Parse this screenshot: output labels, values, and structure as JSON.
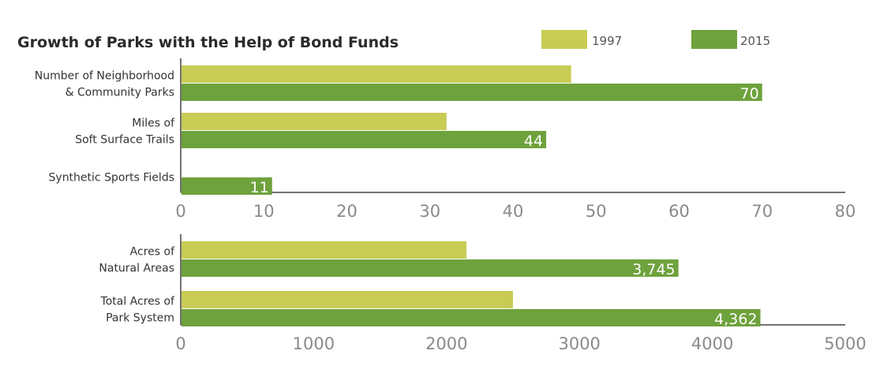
{
  "chart_data": {
    "title": "Growth of Parks with the Help of Bond Funds",
    "type": "bar",
    "orientation": "horizontal",
    "legend": [
      {
        "name": "1997",
        "color": "#c8cc55"
      },
      {
        "name": "2015",
        "color": "#6ea23c"
      }
    ],
    "panels": [
      {
        "xlim": [
          0,
          80
        ],
        "ticks": [
          "0",
          "10",
          "20",
          "30",
          "40",
          "50",
          "60",
          "70",
          "80"
        ],
        "categories": [
          {
            "label_lines": [
              "Number of Neighborhood",
              "& Community Parks"
            ],
            "v1997": 47,
            "v2015": 70,
            "label2015": "70"
          },
          {
            "label_lines": [
              "Miles of",
              "Soft Surface Trails"
            ],
            "v1997": 32,
            "v2015": 44,
            "label2015": "44"
          },
          {
            "label_lines": [
              "Synthetic Sports Fields"
            ],
            "v1997": 0,
            "v2015": 11,
            "label2015": "11"
          }
        ]
      },
      {
        "xlim": [
          0,
          5000
        ],
        "ticks": [
          "0",
          "1000",
          "2000",
          "3000",
          "4000",
          "5000"
        ],
        "categories": [
          {
            "label_lines": [
              "Acres of",
              "Natural Areas"
            ],
            "v1997": 2150,
            "v2015": 3745,
            "label2015": "3,745"
          },
          {
            "label_lines": [
              "Total Acres of",
              "Park System"
            ],
            "v1997": 2500,
            "v2015": 4362,
            "label2015": "4,362"
          }
        ]
      }
    ]
  }
}
